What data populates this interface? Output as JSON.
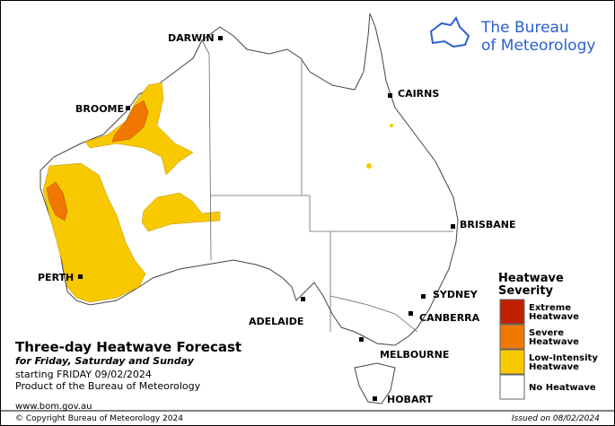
{
  "logo": {
    "lines": [
      "The Bureau",
      "of Meteorology"
    ]
  },
  "cities": [
    "DARWIN",
    "CAIRNS",
    "BROOME",
    "BRISBANE",
    "PERTH",
    "SYDNEY",
    "ADELAIDE",
    "CANBERRA",
    "MELBOURNE",
    "HOBART"
  ],
  "header": {
    "title": "Three-day Heatwave Forecast",
    "subtitle": "for Friday, Saturday and Sunday",
    "start": "starting FRIDAY 09/02/2024",
    "product": "Product of the Bureau of Meteorology",
    "url": "www.bom.gov.au"
  },
  "legend": {
    "title": [
      "Heatwave",
      "Severity"
    ],
    "items": [
      {
        "label": [
          "Extreme",
          "Heatwave"
        ],
        "color": "#c02000"
      },
      {
        "label": [
          "Severe",
          "Heatwave"
        ],
        "color": "#f07800"
      },
      {
        "label": [
          "Low-Intensity",
          "Heatwave"
        ],
        "color": "#f8c800"
      },
      {
        "label": [
          "No Heatwave"
        ],
        "color": "#ffffff"
      }
    ]
  },
  "footer": {
    "copyright": "© Copyright Bureau of Meteorology 2024",
    "issued": "Issued on 08/02/2024"
  }
}
